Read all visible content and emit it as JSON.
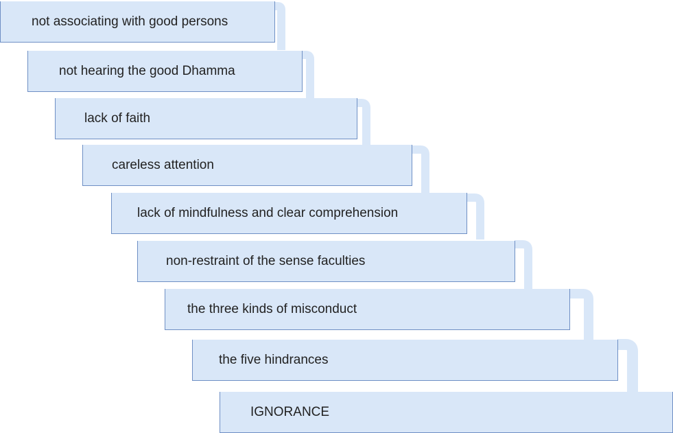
{
  "colors": {
    "box_fill": "#d9e7f8",
    "box_border": "#6e8fc4",
    "connector": "#d9e7f8",
    "text": "#222222"
  },
  "steps": [
    {
      "label": "not associating with good persons"
    },
    {
      "label": "not hearing the good Dhamma"
    },
    {
      "label": "lack of faith"
    },
    {
      "label": "careless attention"
    },
    {
      "label": "lack of mindfulness and clear comprehension"
    },
    {
      "label": "non-restraint of the sense faculties"
    },
    {
      "label": "the three kinds of misconduct"
    },
    {
      "label": "the five hindrances"
    },
    {
      "label": "IGNORANCE"
    }
  ]
}
